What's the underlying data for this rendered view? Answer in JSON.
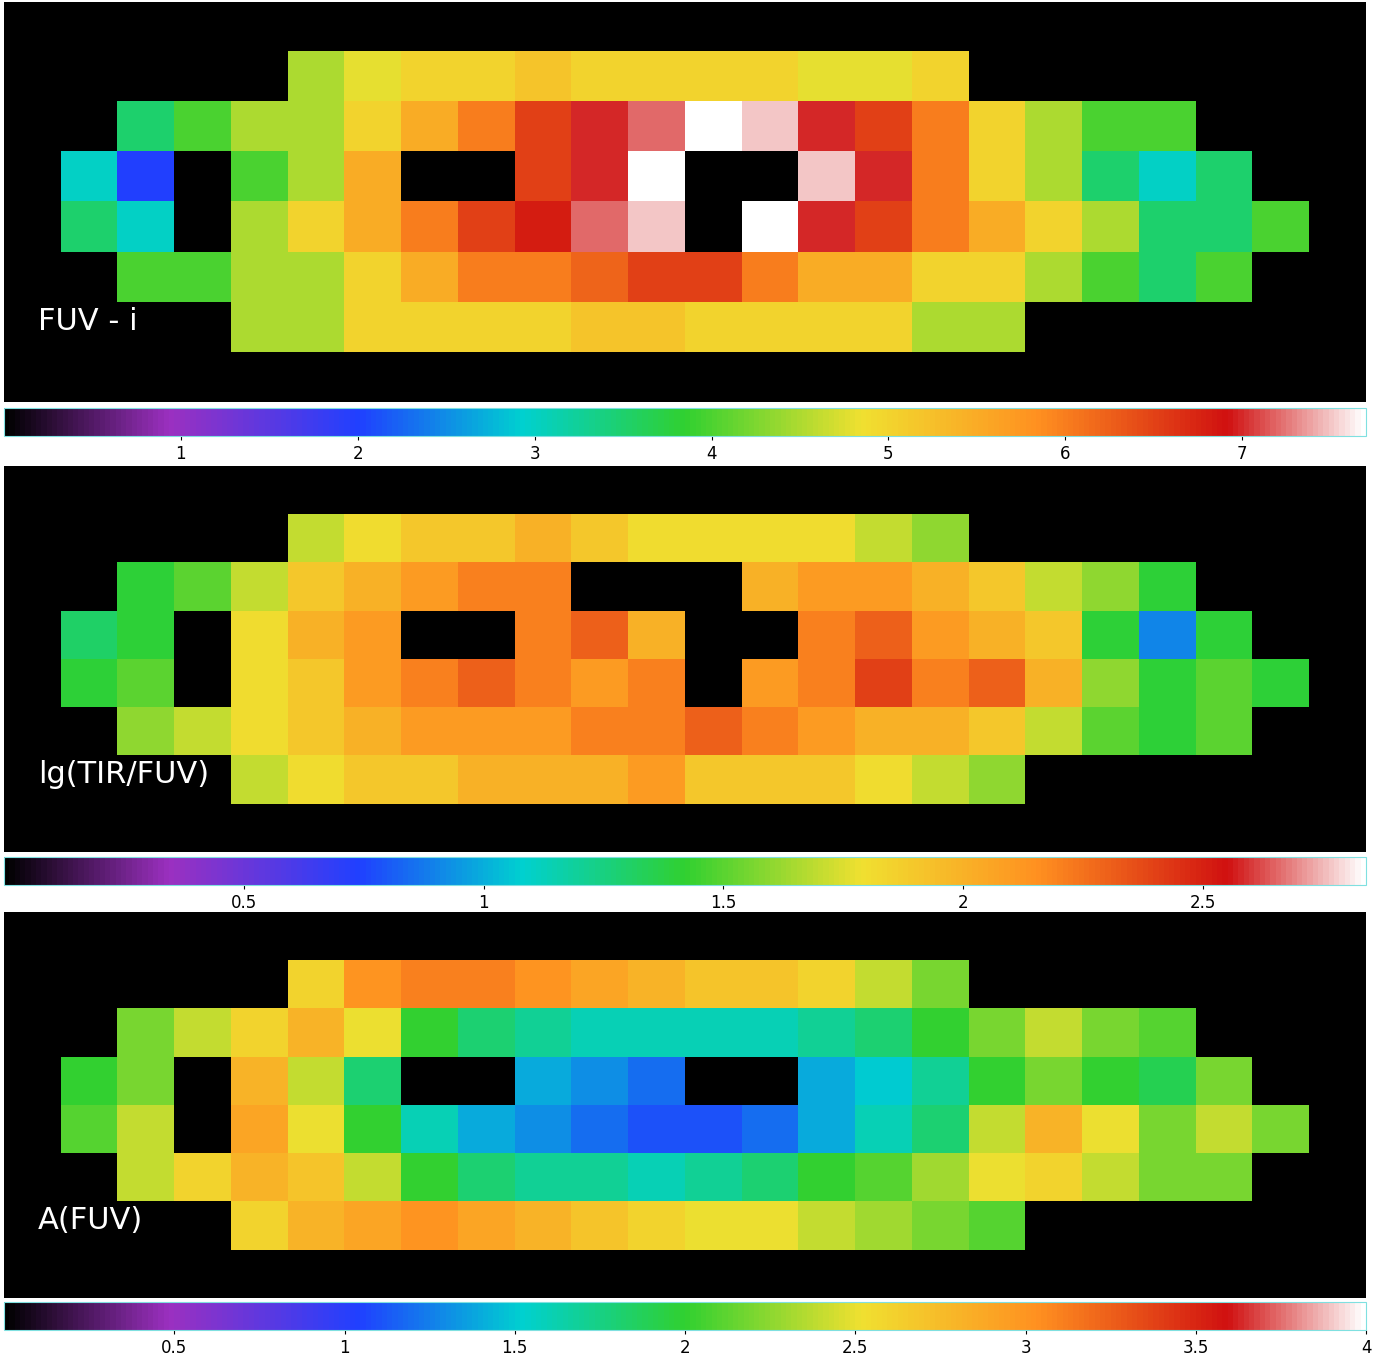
{
  "chart_data": [
    {
      "type": "heatmap",
      "title": "FUV - i",
      "tick_labels": false,
      "colorbar_range": [
        0,
        7.7
      ],
      "colorbar_ticks": [
        1,
        2,
        3,
        4,
        5,
        6,
        7
      ],
      "cells": [
        [
          null,
          null,
          null,
          null,
          null,
          null,
          null,
          null,
          null,
          null,
          null,
          null,
          null,
          null,
          null,
          null,
          null,
          null,
          null,
          null,
          null,
          null,
          null,
          null
        ],
        [
          null,
          null,
          null,
          null,
          null,
          4.5,
          4.8,
          5.0,
          5.0,
          5.2,
          5.0,
          5.0,
          5.0,
          5.0,
          4.8,
          4.8,
          5.0,
          null,
          null,
          null,
          null,
          null,
          null,
          null
        ],
        [
          null,
          null,
          3.5,
          4.0,
          4.5,
          4.5,
          5.0,
          5.5,
          6.0,
          6.5,
          7.0,
          7.2,
          7.7,
          7.5,
          7.0,
          6.5,
          6.0,
          5.0,
          4.5,
          4.0,
          4.0,
          null,
          null,
          null
        ],
        [
          null,
          3.0,
          2.0,
          null,
          4.0,
          4.5,
          5.5,
          null,
          null,
          6.5,
          7.0,
          7.7,
          null,
          null,
          7.5,
          7.0,
          6.0,
          5.0,
          4.5,
          3.5,
          3.0,
          3.5,
          null,
          null
        ],
        [
          null,
          3.5,
          3.0,
          null,
          4.5,
          5.0,
          5.5,
          6.0,
          6.5,
          6.8,
          7.2,
          7.5,
          null,
          7.7,
          7.0,
          6.5,
          6.0,
          5.5,
          5.0,
          4.5,
          3.5,
          3.5,
          4.0,
          null
        ],
        [
          null,
          null,
          4.0,
          4.0,
          4.5,
          4.5,
          5.0,
          5.5,
          6.0,
          6.0,
          6.2,
          6.5,
          6.5,
          6.0,
          5.5,
          5.5,
          5.0,
          5.0,
          4.5,
          4.0,
          3.5,
          4.0,
          null,
          null
        ],
        [
          null,
          null,
          null,
          null,
          4.5,
          4.5,
          5.0,
          5.0,
          5.0,
          5.0,
          5.2,
          5.2,
          5.0,
          5.0,
          5.0,
          5.0,
          4.5,
          4.5,
          null,
          null,
          null,
          null,
          null,
          null
        ],
        [
          null,
          null,
          null,
          null,
          null,
          null,
          null,
          null,
          null,
          null,
          null,
          null,
          null,
          null,
          null,
          null,
          null,
          null,
          null,
          null,
          null,
          null,
          null,
          null
        ]
      ]
    },
    {
      "type": "heatmap",
      "title": "lg(TIR/FUV)",
      "tick_labels": false,
      "colorbar_range": [
        0,
        2.84
      ],
      "colorbar_ticks": [
        0.5,
        1,
        1.5,
        2,
        2.5
      ],
      "cells": [
        [
          null,
          null,
          null,
          null,
          null,
          null,
          null,
          null,
          null,
          null,
          null,
          null,
          null,
          null,
          null,
          null,
          null,
          null,
          null,
          null,
          null,
          null,
          null,
          null
        ],
        [
          null,
          null,
          null,
          null,
          null,
          1.7,
          1.8,
          1.9,
          1.9,
          2.0,
          1.9,
          1.8,
          1.8,
          1.8,
          1.8,
          1.7,
          1.6,
          null,
          null,
          null,
          null,
          null,
          null,
          null
        ],
        [
          null,
          null,
          1.4,
          1.5,
          1.7,
          1.9,
          2.0,
          2.1,
          2.2,
          2.2,
          null,
          null,
          null,
          2.0,
          2.1,
          2.1,
          2.0,
          1.9,
          1.7,
          1.6,
          1.4,
          null,
          null,
          null
        ],
        [
          null,
          1.3,
          1.4,
          null,
          1.8,
          2.0,
          2.1,
          null,
          null,
          2.2,
          2.3,
          2.0,
          null,
          null,
          2.2,
          2.3,
          2.1,
          2.0,
          1.9,
          1.4,
          0.9,
          1.4,
          null,
          null
        ],
        [
          null,
          1.4,
          1.5,
          null,
          1.8,
          1.9,
          2.1,
          2.2,
          2.3,
          2.2,
          2.1,
          2.2,
          null,
          2.1,
          2.2,
          2.4,
          2.2,
          2.3,
          2.0,
          1.6,
          1.4,
          1.5,
          1.4,
          null
        ],
        [
          null,
          null,
          1.6,
          1.7,
          1.8,
          1.9,
          2.0,
          2.1,
          2.1,
          2.1,
          2.2,
          2.2,
          2.3,
          2.2,
          2.1,
          2.0,
          2.0,
          1.9,
          1.7,
          1.5,
          1.4,
          1.5,
          null,
          null
        ],
        [
          null,
          null,
          null,
          null,
          1.7,
          1.8,
          1.9,
          1.9,
          2.0,
          2.0,
          2.0,
          2.1,
          1.9,
          1.9,
          1.9,
          1.8,
          1.7,
          1.6,
          null,
          null,
          null,
          null,
          null,
          null
        ],
        [
          null,
          null,
          null,
          null,
          null,
          null,
          null,
          null,
          null,
          null,
          null,
          null,
          null,
          null,
          null,
          null,
          null,
          null,
          null,
          null,
          null,
          null,
          null,
          null
        ]
      ]
    },
    {
      "type": "heatmap",
      "title": "A(FUV)",
      "tick_labels": false,
      "colorbar_range": [
        0,
        4
      ],
      "colorbar_ticks": [
        0.5,
        1,
        1.5,
        2,
        2.5,
        3,
        3.5,
        4
      ],
      "cells": [
        [
          null,
          null,
          null,
          null,
          null,
          null,
          null,
          null,
          null,
          null,
          null,
          null,
          null,
          null,
          null,
          null,
          null,
          null,
          null,
          null,
          null,
          null,
          null,
          null
        ],
        [
          null,
          null,
          null,
          null,
          null,
          2.6,
          3.0,
          3.1,
          3.1,
          3.0,
          2.9,
          2.8,
          2.7,
          2.7,
          2.6,
          2.4,
          2.2,
          null,
          null,
          null,
          null,
          null,
          null,
          null
        ],
        [
          null,
          null,
          2.2,
          2.4,
          2.6,
          2.8,
          2.5,
          2.0,
          1.8,
          1.7,
          1.6,
          1.6,
          1.6,
          1.6,
          1.7,
          1.8,
          2.0,
          2.2,
          2.4,
          2.2,
          2.1,
          null,
          null,
          null
        ],
        [
          null,
          2.0,
          2.2,
          null,
          2.8,
          2.4,
          1.8,
          null,
          null,
          1.4,
          1.3,
          1.2,
          null,
          null,
          1.4,
          1.5,
          1.7,
          2.0,
          2.2,
          2.0,
          1.9,
          2.2,
          null,
          null
        ],
        [
          null,
          2.1,
          2.4,
          null,
          2.9,
          2.5,
          2.0,
          1.6,
          1.4,
          1.3,
          1.2,
          1.1,
          1.1,
          1.2,
          1.4,
          1.6,
          1.8,
          2.4,
          2.8,
          2.5,
          2.2,
          2.4,
          2.2,
          null
        ],
        [
          null,
          null,
          2.4,
          2.6,
          2.8,
          2.7,
          2.4,
          2.0,
          1.8,
          1.7,
          1.7,
          1.6,
          1.7,
          1.8,
          2.0,
          2.1,
          2.3,
          2.5,
          2.6,
          2.4,
          2.2,
          2.2,
          null,
          null
        ],
        [
          null,
          null,
          null,
          null,
          2.6,
          2.8,
          2.9,
          3.0,
          2.9,
          2.8,
          2.7,
          2.6,
          2.5,
          2.5,
          2.4,
          2.3,
          2.2,
          2.1,
          null,
          null,
          null,
          null,
          null,
          null
        ],
        [
          null,
          null,
          null,
          null,
          null,
          null,
          null,
          null,
          null,
          null,
          null,
          null,
          null,
          null,
          null,
          null,
          null,
          null,
          null,
          null,
          null,
          null,
          null,
          null
        ]
      ]
    }
  ]
}
